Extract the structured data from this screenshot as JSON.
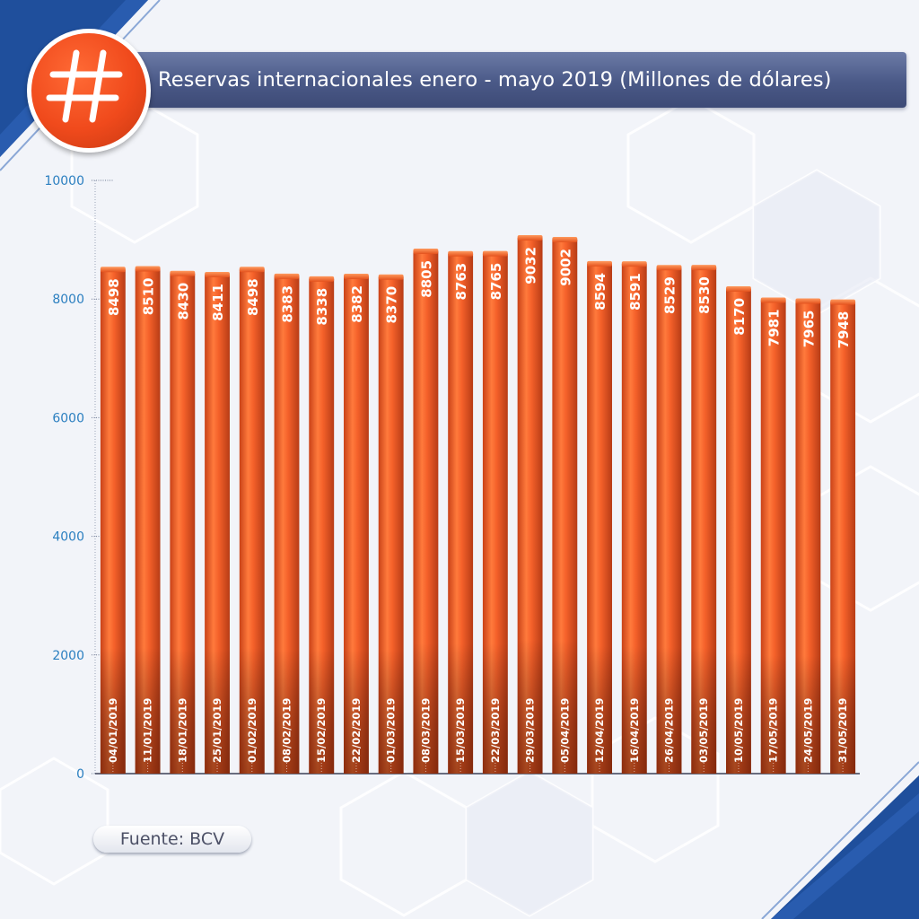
{
  "header": {
    "title": "Reservas internacionales enero - mayo 2019 (Millones de dólares)",
    "badge_icon": "hash-icon"
  },
  "footer": {
    "source": "Fuente: BCV"
  },
  "colors": {
    "bar": "#f0581f",
    "bar_dark": "#a93a16",
    "axis_labels": "#2b7fc0",
    "title_bar": "#4a5987",
    "badge": "#f04a1c",
    "corner": "#1f4f9c"
  },
  "chart_data": {
    "type": "bar",
    "title": "Reservas internacionales enero - mayo 2019 (Millones de dólares)",
    "xlabel": "",
    "ylabel": "",
    "ylim": [
      0,
      10000
    ],
    "yticks": [
      0,
      2000,
      4000,
      6000,
      8000,
      10000
    ],
    "categories": [
      "04/01/2019",
      "11/01/2019",
      "18/01/2019",
      "25/01/2019",
      "01/02/2019",
      "08/02/2019",
      "15/02/2019",
      "22/02/2019",
      "01/03/2019",
      "08/03/2019",
      "15/03/2019",
      "22/03/2019",
      "29/03/2019",
      "05/04/2019",
      "12/04/2019",
      "16/04/2019",
      "26/04/2019",
      "03/05/2019",
      "10/05/2019",
      "17/05/2019",
      "24/05/2019",
      "31/05/2019"
    ],
    "values": [
      8498,
      8510,
      8430,
      8411,
      8498,
      8383,
      8338,
      8382,
      8370,
      8805,
      8763,
      8765,
      9032,
      9002,
      8594,
      8591,
      8529,
      8530,
      8170,
      7981,
      7965,
      7948
    ],
    "grid": false,
    "legend": "none"
  }
}
